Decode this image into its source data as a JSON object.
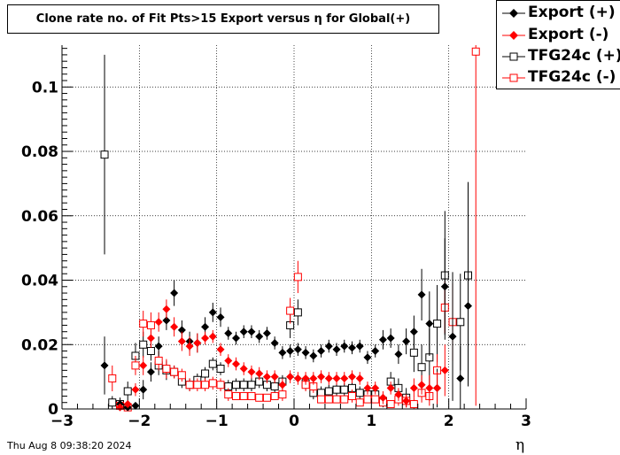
{
  "title": "Clone rate no. of Fit Pts>15 Export versus η for Global(+)",
  "date": "Thu Aug  8 09:38:20 2024",
  "chart_data": {
    "type": "scatter",
    "title": "Clone rate no. of Fit Pts>15 Export versus η for Global(+)",
    "xlabel": "η",
    "ylabel": "",
    "xlim": [
      -3,
      3
    ],
    "ylim": [
      0,
      0.113
    ],
    "xticks": [
      -3,
      -2,
      -1,
      0,
      1,
      2,
      3
    ],
    "xtick_labels": [
      "−3",
      "−2",
      "−1",
      "0",
      "1",
      "2",
      "3"
    ],
    "yticks": [
      0,
      0.02,
      0.04,
      0.06,
      0.08,
      0.1
    ],
    "ytick_labels": [
      "0",
      "0.02",
      "0.04",
      "0.06",
      "0.08",
      "0.1"
    ],
    "grid": true,
    "legend_position": "top-right",
    "series": [
      {
        "name": "Export (+)",
        "color": "#000000",
        "marker": "diamond-filled",
        "x": [
          -2.45,
          -2.25,
          -2.15,
          -2.05,
          -1.95,
          -1.85,
          -1.75,
          -1.65,
          -1.55,
          -1.45,
          -1.35,
          -1.25,
          -1.15,
          -1.05,
          -0.95,
          -0.85,
          -0.75,
          -0.65,
          -0.55,
          -0.45,
          -0.35,
          -0.25,
          -0.15,
          -0.05,
          0.05,
          0.15,
          0.25,
          0.35,
          0.45,
          0.55,
          0.65,
          0.75,
          0.85,
          0.95,
          1.05,
          1.15,
          1.25,
          1.35,
          1.45,
          1.55,
          1.65,
          1.75,
          1.85,
          1.95,
          2.05,
          2.15,
          2.25
        ],
        "y": [
          0.0135,
          0.0015,
          0.0005,
          0.001,
          0.006,
          0.0115,
          0.0195,
          0.0275,
          0.036,
          0.0245,
          0.021,
          0.0205,
          0.0255,
          0.03,
          0.0285,
          0.0235,
          0.022,
          0.024,
          0.024,
          0.0225,
          0.0235,
          0.0205,
          0.0175,
          0.018,
          0.0185,
          0.0175,
          0.0165,
          0.018,
          0.0195,
          0.0185,
          0.0195,
          0.019,
          0.0195,
          0.016,
          0.018,
          0.0215,
          0.022,
          0.017,
          0.021,
          0.024,
          0.0355,
          0.0265,
          0.0065,
          0.038,
          0.0225,
          0.0095,
          0.032
        ],
        "err": [
          0.009,
          0.002,
          0.001,
          0.001,
          0.003,
          0.003,
          0.003,
          0.003,
          0.004,
          0.003,
          0.003,
          0.003,
          0.003,
          0.003,
          0.003,
          0.002,
          0.002,
          0.002,
          0.002,
          0.002,
          0.002,
          0.002,
          0.002,
          0.002,
          0.002,
          0.002,
          0.002,
          0.002,
          0.002,
          0.002,
          0.002,
          0.002,
          0.002,
          0.002,
          0.002,
          0.003,
          0.003,
          0.003,
          0.004,
          0.005,
          0.008,
          0.01,
          0.006,
          0.015,
          0.02,
          0.01,
          0.025
        ]
      },
      {
        "name": "Export (-)",
        "color": "#ff0000",
        "marker": "diamond-filled",
        "x": [
          -2.25,
          -2.15,
          -2.05,
          -1.95,
          -1.85,
          -1.75,
          -1.65,
          -1.55,
          -1.45,
          -1.35,
          -1.25,
          -1.15,
          -1.05,
          -0.95,
          -0.85,
          -0.75,
          -0.65,
          -0.55,
          -0.45,
          -0.35,
          -0.25,
          -0.15,
          -0.05,
          0.05,
          0.15,
          0.25,
          0.35,
          0.45,
          0.55,
          0.65,
          0.75,
          0.85,
          0.95,
          1.05,
          1.15,
          1.25,
          1.35,
          1.45,
          1.55,
          1.65,
          1.75,
          1.85,
          1.95
        ],
        "y": [
          0.0005,
          0.0015,
          0.006,
          0.0135,
          0.022,
          0.027,
          0.031,
          0.0255,
          0.021,
          0.0195,
          0.0205,
          0.022,
          0.0225,
          0.0185,
          0.015,
          0.014,
          0.0125,
          0.0115,
          0.011,
          0.01,
          0.01,
          0.0075,
          0.01,
          0.0095,
          0.0095,
          0.0095,
          0.01,
          0.0095,
          0.0095,
          0.0095,
          0.01,
          0.0095,
          0.0065,
          0.0065,
          0.0035,
          0.0065,
          0.0045,
          0.0025,
          0.0065,
          0.0075,
          0.0065,
          0.0065,
          0.012
        ],
        "err": [
          0.001,
          0.001,
          0.002,
          0.003,
          0.003,
          0.003,
          0.003,
          0.003,
          0.003,
          0.003,
          0.003,
          0.002,
          0.002,
          0.002,
          0.002,
          0.002,
          0.002,
          0.002,
          0.002,
          0.002,
          0.002,
          0.002,
          0.002,
          0.002,
          0.002,
          0.002,
          0.002,
          0.002,
          0.002,
          0.002,
          0.002,
          0.002,
          0.002,
          0.002,
          0.002,
          0.002,
          0.002,
          0.002,
          0.003,
          0.003,
          0.004,
          0.005,
          0.008
        ]
      },
      {
        "name": "TFG24c (+)",
        "color": "#000000",
        "marker": "square-open",
        "x": [
          -2.45,
          -2.35,
          -2.25,
          -2.15,
          -2.05,
          -1.95,
          -1.85,
          -1.75,
          -1.65,
          -1.55,
          -1.45,
          -1.35,
          -1.25,
          -1.15,
          -1.05,
          -0.95,
          -0.85,
          -0.75,
          -0.65,
          -0.55,
          -0.45,
          -0.35,
          -0.25,
          -0.15,
          -0.05,
          0.05,
          0.15,
          0.25,
          0.35,
          0.45,
          0.55,
          0.65,
          0.75,
          0.85,
          0.95,
          1.05,
          1.15,
          1.25,
          1.35,
          1.45,
          1.55,
          1.65,
          1.75,
          1.85,
          1.95,
          2.15,
          2.25
        ],
        "y": [
          0.079,
          0.002,
          0.0015,
          0.0055,
          0.0165,
          0.02,
          0.018,
          0.0135,
          0.012,
          0.0115,
          0.0085,
          0.0075,
          0.009,
          0.011,
          0.014,
          0.0125,
          0.007,
          0.0075,
          0.0075,
          0.0075,
          0.0085,
          0.0075,
          0.007,
          0.0085,
          0.026,
          0.03,
          0.008,
          0.005,
          0.005,
          0.0055,
          0.006,
          0.006,
          0.0065,
          0.005,
          0.0045,
          0.0045,
          0.0025,
          0.0085,
          0.0065,
          0.0035,
          0.0175,
          0.013,
          0.016,
          0.0265,
          0.0415,
          0.027,
          0.0415
        ],
        "err": [
          0.031,
          0.002,
          0.002,
          0.003,
          0.004,
          0.004,
          0.003,
          0.003,
          0.003,
          0.002,
          0.002,
          0.002,
          0.002,
          0.002,
          0.002,
          0.002,
          0.002,
          0.002,
          0.002,
          0.002,
          0.002,
          0.002,
          0.002,
          0.002,
          0.004,
          0.004,
          0.002,
          0.002,
          0.002,
          0.002,
          0.002,
          0.002,
          0.002,
          0.002,
          0.002,
          0.002,
          0.002,
          0.003,
          0.003,
          0.003,
          0.006,
          0.007,
          0.009,
          0.012,
          0.02,
          0.015,
          0.029
        ]
      },
      {
        "name": "TFG24c (-)",
        "color": "#ff0000",
        "marker": "square-open",
        "x": [
          -2.35,
          -2.25,
          -2.15,
          -2.05,
          -1.95,
          -1.85,
          -1.75,
          -1.65,
          -1.55,
          -1.45,
          -1.35,
          -1.25,
          -1.15,
          -1.05,
          -0.95,
          -0.85,
          -0.75,
          -0.65,
          -0.55,
          -0.45,
          -0.35,
          -0.25,
          -0.15,
          -0.05,
          0.05,
          0.15,
          0.25,
          0.35,
          0.45,
          0.55,
          0.65,
          0.75,
          0.85,
          0.95,
          1.05,
          1.15,
          1.25,
          1.35,
          1.45,
          1.55,
          1.65,
          1.75,
          1.85,
          1.95,
          2.05,
          2.35
        ],
        "y": [
          0.0095,
          0.001,
          0.0005,
          0.0135,
          0.0265,
          0.026,
          0.015,
          0.0125,
          0.0115,
          0.0105,
          0.0075,
          0.0075,
          0.0075,
          0.008,
          0.0075,
          0.0045,
          0.004,
          0.004,
          0.004,
          0.0035,
          0.0035,
          0.004,
          0.0045,
          0.0305,
          0.041,
          0.0075,
          0.007,
          0.003,
          0.003,
          0.003,
          0.003,
          0.004,
          0.002,
          0.003,
          0.003,
          0.002,
          0.0015,
          0.003,
          0.0025,
          0.0015,
          0.005,
          0.004,
          0.012,
          0.0315,
          0.027,
          0.111
        ],
        "err": [
          0.004,
          0.001,
          0.001,
          0.003,
          0.004,
          0.004,
          0.003,
          0.003,
          0.002,
          0.002,
          0.002,
          0.002,
          0.002,
          0.002,
          0.002,
          0.002,
          0.001,
          0.001,
          0.001,
          0.001,
          0.001,
          0.001,
          0.002,
          0.004,
          0.005,
          0.002,
          0.002,
          0.001,
          0.001,
          0.001,
          0.001,
          0.002,
          0.001,
          0.001,
          0.001,
          0.001,
          0.001,
          0.002,
          0.002,
          0.002,
          0.003,
          0.003,
          0.005,
          0.008,
          0.012,
          0.11
        ]
      }
    ]
  }
}
